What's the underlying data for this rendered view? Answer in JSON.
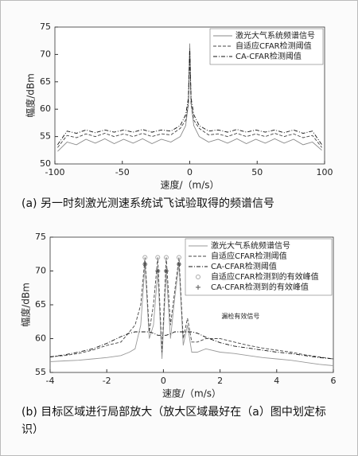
{
  "chart_data": [
    {
      "type": "line",
      "caption": "(a) 另一时刻激光测速系统试飞试验取得的频谱信号",
      "xlabel": "速度/（m/s）",
      "ylabel": "幅度/dBm",
      "xlim": [
        -100,
        100
      ],
      "ylim": [
        50,
        75
      ],
      "xticks": [
        -100,
        -50,
        0,
        50,
        100
      ],
      "yticks": [
        50,
        55,
        60,
        65,
        70,
        75
      ],
      "legend": "upper right",
      "x": [
        -98,
        -91,
        -84,
        -77,
        -70,
        -63,
        -56,
        -49,
        -42,
        -35,
        -28,
        -21,
        -14,
        -7,
        -3,
        -1,
        0,
        1,
        3,
        7,
        14,
        21,
        28,
        35,
        42,
        49,
        56,
        63,
        70,
        77,
        84,
        91,
        98
      ],
      "series": [
        {
          "name": "激光大气系统频谱信号",
          "color": "#888888",
          "style": "solid",
          "values": [
            52.3,
            54,
            53.5,
            54.5,
            53.8,
            54.6,
            53.7,
            54.5,
            53.8,
            54.6,
            53.7,
            54.5,
            54,
            55,
            57,
            61,
            72,
            61,
            57,
            55,
            54,
            54.5,
            53.8,
            54.6,
            53.7,
            54.5,
            53.8,
            54.6,
            53.8,
            54.5,
            53.5,
            54,
            52.5
          ]
        },
        {
          "name": "自适应CFAR检测阈值",
          "color": "#444444",
          "style": "dashed",
          "values": [
            53,
            55.2,
            54.8,
            55.5,
            55,
            55.6,
            55,
            55.5,
            55,
            55.6,
            55,
            55.5,
            55.3,
            56.5,
            58,
            61,
            70,
            61,
            58,
            56.5,
            55.3,
            55.5,
            55,
            55.6,
            55,
            55.5,
            55,
            55.6,
            55,
            55.5,
            54.8,
            55.2,
            53
          ]
        },
        {
          "name": "CA-CFAR检测阈值",
          "color": "#111111",
          "style": "dashdot",
          "values": [
            53.5,
            56,
            55.6,
            56.2,
            55.7,
            56.2,
            55.8,
            56.2,
            55.8,
            56.3,
            55.8,
            56.2,
            56,
            57,
            59,
            62,
            71,
            62,
            59,
            57,
            56,
            56.2,
            55.8,
            56.3,
            55.8,
            56.2,
            55.8,
            56.2,
            55.7,
            56.2,
            55.6,
            56,
            53.5
          ]
        }
      ]
    },
    {
      "type": "line",
      "caption": "(b) 目标区域进行局部放大（放大区域最好在（a）图中划定标识）",
      "xlabel": "速度/（m/s）",
      "ylabel": "幅度/dBm",
      "xlim": [
        -4,
        6
      ],
      "ylim": [
        55,
        75
      ],
      "xticks": [
        -4,
        -2,
        0,
        2,
        4,
        6
      ],
      "yticks": [
        55,
        60,
        65,
        70,
        75
      ],
      "legend": "upper right",
      "annotation": "漏检有效信号",
      "x": [
        -4,
        -3.5,
        -3,
        -2.5,
        -2,
        -1.5,
        -1.2,
        -1,
        -0.8,
        -0.65,
        -0.5,
        -0.35,
        -0.2,
        -0.05,
        0.1,
        0.25,
        0.4,
        0.55,
        0.7,
        0.85,
        1,
        1.2,
        1.5,
        2,
        2.5,
        3,
        3.5,
        4,
        4.5,
        5,
        5.5,
        6
      ],
      "series": [
        {
          "name": "激光大气系统频谱信号",
          "color": "#999999",
          "style": "solid",
          "values": [
            56.6,
            56.7,
            56.8,
            57,
            57.2,
            57.5,
            58,
            58.5,
            62,
            71,
            60,
            62,
            70,
            57,
            70,
            60,
            66,
            71,
            59,
            62,
            58,
            58,
            58.5,
            58,
            57.8,
            57.5,
            57.2,
            57,
            56.8,
            56.5,
            56.2,
            56
          ]
        },
        {
          "name": "自适应CFAR检测阈值",
          "color": "#444444",
          "style": "dashed",
          "values": [
            57.3,
            57.5,
            57.8,
            58.3,
            59,
            59.5,
            61,
            62,
            65,
            72,
            61,
            65,
            72,
            58,
            72,
            62,
            67,
            72,
            60,
            63,
            59.5,
            59.5,
            60,
            60,
            59.5,
            59,
            58.6,
            58.3,
            58,
            57.6,
            57.3,
            57
          ]
        },
        {
          "name": "CA-CFAR检测阈值",
          "color": "#111111",
          "style": "dashdot",
          "values": [
            57.3,
            57.6,
            58,
            58.5,
            59.3,
            60.3,
            60.8,
            61,
            61,
            61,
            61,
            60.8,
            60.5,
            60.5,
            60.5,
            60.7,
            61,
            61,
            61,
            61,
            61,
            60.8,
            60.2,
            59.4,
            58.9,
            58.6,
            58.3,
            58,
            57.8,
            57.5,
            57.2,
            57
          ]
        },
        {
          "name": "自适应CFAR检测到的有效峰值",
          "color": "#aaaaaa",
          "type": "scatter",
          "marker": "circle",
          "x": [
            -0.65,
            -0.2,
            0.1,
            0.55
          ],
          "values": [
            72,
            72,
            72,
            72
          ]
        },
        {
          "name": "CA-CFAR检测到的有效峰值",
          "color": "#555555",
          "type": "scatter",
          "marker": "star",
          "x": [
            -0.65,
            -0.2,
            0.1,
            0.55
          ],
          "values": [
            71,
            70,
            70,
            71
          ]
        }
      ]
    }
  ]
}
